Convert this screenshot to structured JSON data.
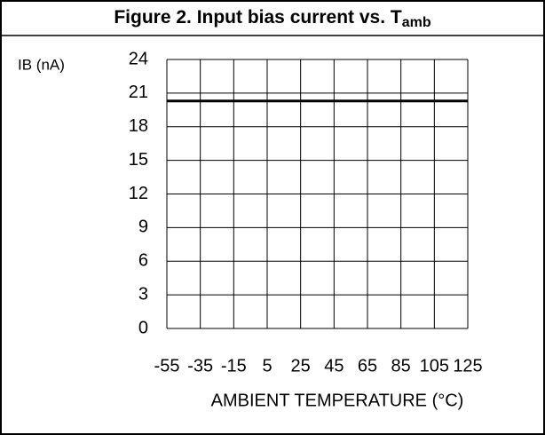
{
  "chart_data": {
    "type": "line",
    "title": "Figure 2. Input bias current vs. T",
    "title_subscript": "amb",
    "y_label": "IB (nA)",
    "x_label": "AMBIENT TEMPERATURE (°C)",
    "x": [
      -55,
      125
    ],
    "series": [
      {
        "name": null,
        "color": "#000000",
        "values": [
          20.3,
          20.3
        ]
      }
    ],
    "xlim": [
      -55,
      125
    ],
    "xticks": [
      -55,
      -35,
      -15,
      5,
      25,
      45,
      65,
      85,
      105,
      125
    ],
    "ylim": [
      0,
      24
    ],
    "yticks": [
      0,
      3,
      6,
      9,
      12,
      15,
      18,
      21,
      24
    ],
    "grid": true
  }
}
